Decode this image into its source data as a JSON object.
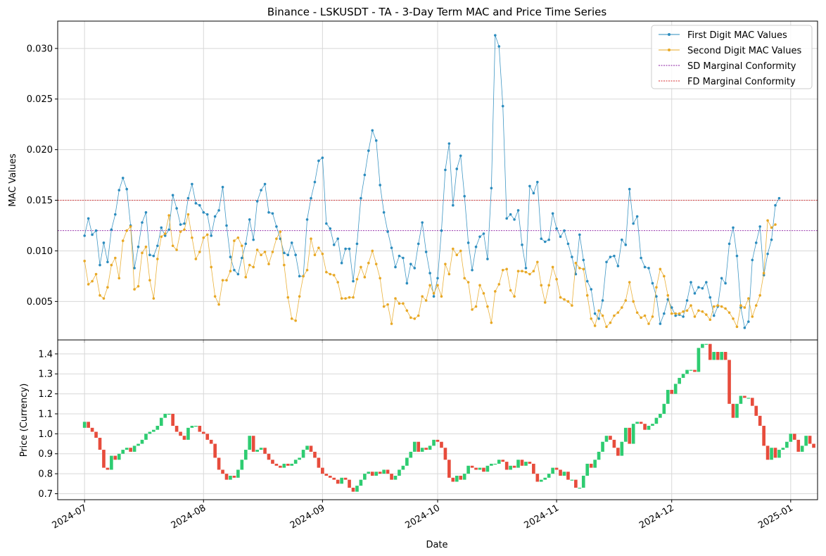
{
  "chart_data": [
    {
      "type": "line",
      "title": "Binance - LSKUSDT - TA - 3-Day Term MAC and Price Time Series",
      "ylabel": "MAC Values",
      "ylim": [
        0.0012,
        0.0327
      ],
      "yticks": [
        0.005,
        0.01,
        0.015,
        0.02,
        0.025,
        0.03
      ],
      "ytick_labels": [
        "0.005",
        "0.010",
        "0.015",
        "0.020",
        "0.025",
        "0.030"
      ],
      "grid": true,
      "legend_position": "top-right",
      "x_start": "2024-07-01",
      "x_step_days": 1,
      "series": [
        {
          "name": "First Digit MAC Values",
          "color": "#2b8cbe",
          "values": [
            0.0115,
            0.0132,
            0.0116,
            0.012,
            0.0086,
            0.0108,
            0.0089,
            0.0121,
            0.0136,
            0.016,
            0.0172,
            0.0161,
            0.0125,
            0.0083,
            0.0104,
            0.0128,
            0.0138,
            0.0096,
            0.0095,
            0.0105,
            0.0123,
            0.0115,
            0.0121,
            0.0155,
            0.0142,
            0.0126,
            0.0127,
            0.0152,
            0.0166,
            0.0147,
            0.0145,
            0.0138,
            0.0136,
            0.0115,
            0.0134,
            0.014,
            0.0163,
            0.0125,
            0.0094,
            0.0081,
            0.0077,
            0.0093,
            0.0107,
            0.0131,
            0.0111,
            0.0149,
            0.016,
            0.0166,
            0.0138,
            0.0137,
            0.0124,
            0.0112,
            0.0098,
            0.0096,
            0.0108,
            0.0096,
            0.0075,
            0.0075,
            0.0131,
            0.0152,
            0.0168,
            0.0189,
            0.0192,
            0.0127,
            0.0122,
            0.0106,
            0.0112,
            0.0088,
            0.0102,
            0.0102,
            0.007,
            0.0107,
            0.0152,
            0.0175,
            0.0199,
            0.0219,
            0.0209,
            0.0165,
            0.0138,
            0.0119,
            0.0103,
            0.0084,
            0.0095,
            0.0093,
            0.0068,
            0.0087,
            0.0083,
            0.0107,
            0.0128,
            0.0099,
            0.0078,
            0.0055,
            0.0073,
            0.012,
            0.018,
            0.0206,
            0.0145,
            0.0181,
            0.0194,
            0.0154,
            0.0108,
            0.0081,
            0.0104,
            0.0114,
            0.0117,
            0.0092,
            0.0162,
            0.0313,
            0.0302,
            0.0243,
            0.0132,
            0.0136,
            0.0131,
            0.014,
            0.0106,
            0.0083,
            0.0164,
            0.0157,
            0.0168,
            0.0112,
            0.0109,
            0.0111,
            0.0137,
            0.0122,
            0.0114,
            0.012,
            0.0107,
            0.0094,
            0.0077,
            0.0116,
            0.0091,
            0.007,
            0.0062,
            0.0038,
            0.0033,
            0.0051,
            0.0089,
            0.0094,
            0.0095,
            0.0085,
            0.0111,
            0.0106,
            0.0161,
            0.0127,
            0.0134,
            0.0093,
            0.0084,
            0.0083,
            0.0068,
            0.0055,
            0.0028,
            0.0038,
            0.0052,
            0.0044,
            0.0036,
            0.0037,
            0.0035,
            0.0051,
            0.0069,
            0.0058,
            0.0064,
            0.0063,
            0.0069,
            0.0054,
            0.0036,
            0.0045,
            0.0073,
            0.0068,
            0.0107,
            0.0123,
            0.0095,
            0.0044,
            0.0024,
            0.003,
            0.0091,
            0.0108,
            0.0124,
            0.0076,
            0.0097,
            0.0111,
            0.0145,
            0.0152
          ]
        },
        {
          "name": "Second Digit MAC Values",
          "color": "#e8a825",
          "values": [
            0.009,
            0.0067,
            0.007,
            0.0077,
            0.0056,
            0.0053,
            0.0064,
            0.0086,
            0.0093,
            0.0073,
            0.011,
            0.012,
            0.0124,
            0.0062,
            0.0065,
            0.0098,
            0.0104,
            0.0071,
            0.0053,
            0.0092,
            0.0114,
            0.0117,
            0.0135,
            0.0105,
            0.0101,
            0.0119,
            0.0121,
            0.0136,
            0.0113,
            0.0092,
            0.0099,
            0.0113,
            0.0116,
            0.0084,
            0.0055,
            0.0047,
            0.0071,
            0.0071,
            0.008,
            0.011,
            0.0113,
            0.0105,
            0.0074,
            0.0086,
            0.0084,
            0.0101,
            0.0096,
            0.0099,
            0.0087,
            0.0099,
            0.0112,
            0.0119,
            0.0086,
            0.0054,
            0.0033,
            0.0031,
            0.0055,
            0.0075,
            0.0081,
            0.0112,
            0.0096,
            0.0103,
            0.0097,
            0.0079,
            0.0077,
            0.0076,
            0.0069,
            0.0053,
            0.0053,
            0.0054,
            0.0054,
            0.0072,
            0.0084,
            0.0074,
            0.0088,
            0.01,
            0.0087,
            0.0073,
            0.0045,
            0.0047,
            0.0028,
            0.0053,
            0.0048,
            0.0048,
            0.0041,
            0.0034,
            0.0033,
            0.0036,
            0.0055,
            0.0051,
            0.0066,
            0.0058,
            0.0066,
            0.0055,
            0.0087,
            0.0077,
            0.0102,
            0.0096,
            0.01,
            0.0073,
            0.0069,
            0.0042,
            0.0045,
            0.0066,
            0.0058,
            0.0045,
            0.0029,
            0.006,
            0.0067,
            0.0081,
            0.0082,
            0.0061,
            0.0055,
            0.008,
            0.008,
            0.0079,
            0.0077,
            0.008,
            0.0089,
            0.0066,
            0.0049,
            0.0066,
            0.0084,
            0.0072,
            0.0054,
            0.0052,
            0.005,
            0.0046,
            0.0088,
            0.0083,
            0.0082,
            0.0056,
            0.0033,
            0.0026,
            0.0041,
            0.0036,
            0.0025,
            0.0029,
            0.0036,
            0.0039,
            0.0044,
            0.0051,
            0.0069,
            0.005,
            0.0039,
            0.0034,
            0.0036,
            0.0028,
            0.0035,
            0.0064,
            0.0082,
            0.0075,
            0.0056,
            0.0038,
            0.0038,
            0.0038,
            0.004,
            0.0041,
            0.0046,
            0.0035,
            0.0041,
            0.004,
            0.0037,
            0.0032,
            0.0045,
            0.0046,
            0.0045,
            0.0043,
            0.0039,
            0.0033,
            0.0025,
            0.0046,
            0.0044,
            0.0053,
            0.0035,
            0.0046,
            0.0056,
            0.0078,
            0.013,
            0.0123,
            0.0126
          ]
        }
      ],
      "reference_lines": [
        {
          "name": "SD Marginal Conformity",
          "value": 0.012,
          "color": "#8a1aa0",
          "style": "dashed"
        },
        {
          "name": "FD Marginal Conformity",
          "value": 0.015,
          "color": "#d62728",
          "style": "dashed"
        }
      ]
    },
    {
      "type": "candlestick",
      "ylabel": "Price (Currency)",
      "xlabel": "Date",
      "ylim": [
        0.67,
        1.47
      ],
      "yticks": [
        0.7,
        0.8,
        0.9,
        1.0,
        1.1,
        1.2,
        1.3,
        1.4
      ],
      "ytick_labels": [
        "0.7",
        "0.8",
        "0.9",
        "1.0",
        "1.1",
        "1.2",
        "1.3",
        "1.4"
      ],
      "grid": true,
      "up_color": "#2ecc71",
      "down_color": "#e74c3c",
      "x_start": "2024-07-01",
      "x_step_days": 1,
      "x_range": [
        "2024-06-24",
        "2025-01-08"
      ],
      "xticks": [
        "2024-07-01",
        "2024-08-01",
        "2024-09-01",
        "2024-10-01",
        "2024-11-01",
        "2024-12-01",
        "2025-01-01"
      ],
      "xtick_labels": [
        "2024-07",
        "2024-08",
        "2024-09",
        "2024-10",
        "2024-11",
        "2024-12",
        "2025-01"
      ],
      "close": [
        1.06,
        1.03,
        1.01,
        0.98,
        0.92,
        0.83,
        0.82,
        0.89,
        0.87,
        0.9,
        0.92,
        0.93,
        0.91,
        0.94,
        0.95,
        0.97,
        1.0,
        1.01,
        1.02,
        1.04,
        1.08,
        1.1,
        1.1,
        1.04,
        1.01,
        0.99,
        0.97,
        1.03,
        1.04,
        1.04,
        1.01,
        1.0,
        0.97,
        0.95,
        0.88,
        0.82,
        0.8,
        0.77,
        0.79,
        0.78,
        0.82,
        0.87,
        0.92,
        0.99,
        0.91,
        0.92,
        0.93,
        0.9,
        0.87,
        0.85,
        0.84,
        0.83,
        0.85,
        0.84,
        0.85,
        0.87,
        0.88,
        0.92,
        0.94,
        0.91,
        0.88,
        0.83,
        0.8,
        0.79,
        0.78,
        0.77,
        0.75,
        0.78,
        0.77,
        0.73,
        0.71,
        0.74,
        0.77,
        0.8,
        0.81,
        0.79,
        0.81,
        0.8,
        0.82,
        0.8,
        0.77,
        0.79,
        0.82,
        0.84,
        0.88,
        0.91,
        0.96,
        0.91,
        0.93,
        0.92,
        0.94,
        0.97,
        0.96,
        0.93,
        0.87,
        0.78,
        0.76,
        0.79,
        0.77,
        0.8,
        0.84,
        0.83,
        0.82,
        0.83,
        0.81,
        0.84,
        0.85,
        0.85,
        0.87,
        0.86,
        0.82,
        0.84,
        0.83,
        0.87,
        0.84,
        0.86,
        0.85,
        0.8,
        0.76,
        0.77,
        0.78,
        0.8,
        0.83,
        0.82,
        0.79,
        0.81,
        0.77,
        0.77,
        0.73,
        0.73,
        0.79,
        0.85,
        0.83,
        0.87,
        0.91,
        0.96,
        0.99,
        0.97,
        0.93,
        0.89,
        0.96,
        1.03,
        0.95,
        1.05,
        1.06,
        1.05,
        1.02,
        1.04,
        1.05,
        1.08,
        1.1,
        1.15,
        1.22,
        1.2,
        1.25,
        1.28,
        1.3,
        1.32,
        1.32,
        1.31,
        1.43,
        1.45,
        1.45,
        1.37,
        1.41,
        1.37,
        1.41,
        1.37,
        1.15,
        1.08,
        1.15,
        1.19,
        1.18,
        1.18,
        1.14,
        1.09,
        1.04,
        0.94,
        0.87,
        0.93,
        0.88,
        0.92,
        0.93,
        0.96,
        1.0,
        0.97,
        0.91,
        0.94,
        0.99,
        0.95,
        0.93
      ],
      "open_first": 1.03
    }
  ]
}
